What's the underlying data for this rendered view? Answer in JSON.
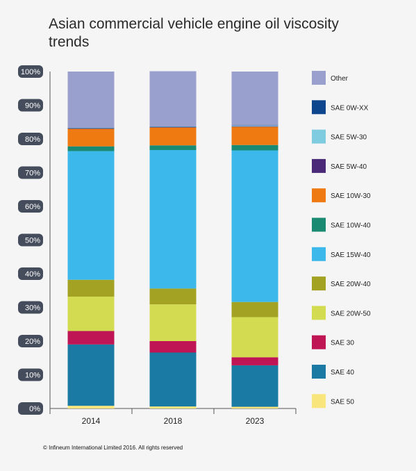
{
  "chart_data": {
    "type": "bar",
    "stacked": true,
    "percent": true,
    "title": "Asian commercial vehicle engine oil viscosity trends",
    "xlabel": "",
    "ylabel": "",
    "ylim": [
      0,
      100
    ],
    "yticks": [
      "0%",
      "10%",
      "20%",
      "30%",
      "40%",
      "50%",
      "60%",
      "70%",
      "80%",
      "90%",
      "100%"
    ],
    "categories": [
      "2014",
      "2018",
      "2023"
    ],
    "legend_position": "right",
    "series": [
      {
        "name": "SAE 50",
        "color": "#f8e67c",
        "values": [
          0.8,
          0.6,
          0.5
        ]
      },
      {
        "name": "SAE 40",
        "color": "#1a7aa3",
        "values": [
          18.2,
          16.0,
          12.3
        ]
      },
      {
        "name": "SAE 30",
        "color": "#bf1554",
        "values": [
          4.0,
          3.4,
          2.4
        ]
      },
      {
        "name": "SAE 20W-50",
        "color": "#d3db51",
        "values": [
          10.2,
          10.9,
          11.9
        ]
      },
      {
        "name": "SAE 20W-40",
        "color": "#a3a222",
        "values": [
          5.0,
          4.7,
          4.5
        ]
      },
      {
        "name": "SAE 15W-40",
        "color": "#3db8ea",
        "values": [
          38.2,
          41.1,
          45.0
        ]
      },
      {
        "name": "SAE 10W-40",
        "color": "#1a8a72",
        "values": [
          1.4,
          1.4,
          1.6
        ]
      },
      {
        "name": "SAE 10W-30",
        "color": "#f07a12",
        "values": [
          5.2,
          5.3,
          5.4
        ]
      },
      {
        "name": "SAE 5W-40",
        "color": "#4a2a78",
        "values": [
          0.1,
          0.1,
          0.1
        ]
      },
      {
        "name": "SAE 5W-30",
        "color": "#7fcbdf",
        "values": [
          0.1,
          0.1,
          0.2
        ]
      },
      {
        "name": "SAE 0W-XX",
        "color": "#0d468c",
        "values": [
          0.1,
          0.1,
          0.1
        ]
      },
      {
        "name": "Other",
        "color": "#9aa0ce",
        "values": [
          16.7,
          16.4,
          16.0
        ]
      }
    ]
  },
  "footer": "© Infineum International Limited 2016. All rights reserved"
}
